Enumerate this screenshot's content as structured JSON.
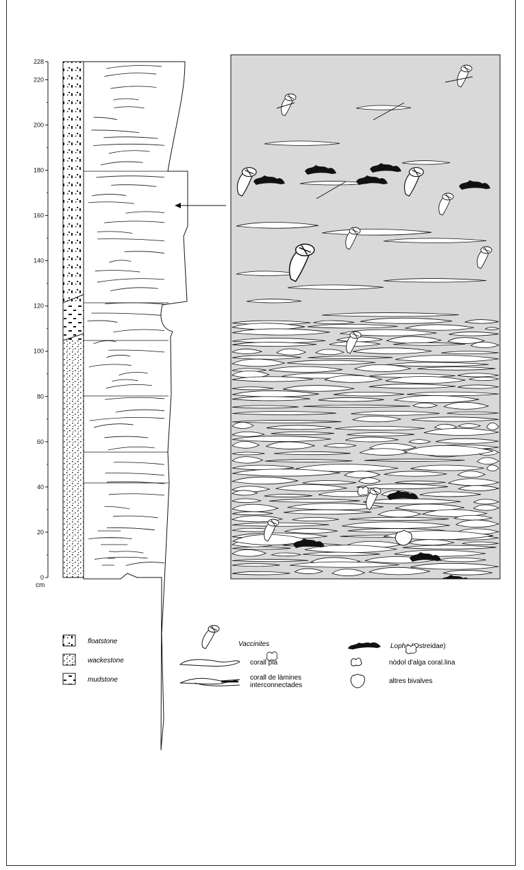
{
  "axis": {
    "unit": "cm",
    "ticks": [
      "228",
      "220",
      "200",
      "180",
      "160",
      "140",
      "120",
      "100",
      "80",
      "60",
      "40",
      "20",
      "0"
    ]
  },
  "legend": {
    "lithology": [
      {
        "label": "floatstone"
      },
      {
        "label": "wackestone"
      },
      {
        "label": "mudstone"
      }
    ],
    "components": [
      {
        "label": "Vaccinites"
      },
      {
        "label": "corall pla"
      },
      {
        "label_line1": "corall de làmines",
        "label_line2": "interconnectades"
      }
    ],
    "others": [
      {
        "label_italic": "Lopha",
        "label_rest": " (Ostreidae)"
      },
      {
        "label": "nòdol d'alga coral.lina"
      },
      {
        "label": "altres bivalves"
      }
    ]
  },
  "colors": {
    "panel_fill": "#d9d9d9",
    "line": "#111111"
  }
}
